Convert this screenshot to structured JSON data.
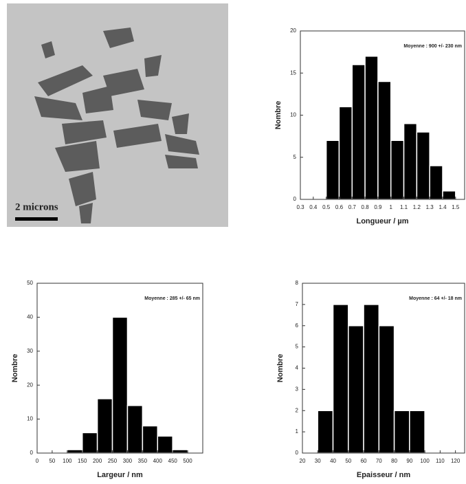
{
  "image": {
    "scale_label": "2 microns"
  },
  "chart_data": [
    {
      "type": "histogram",
      "annotation": "Moyenne : 900 +/- 230 nm",
      "x_label": "Longueur / µm",
      "y_label": "Nombre",
      "bins": [
        0.5,
        0.6,
        0.7,
        0.8,
        0.9,
        1.0,
        1.1,
        1.2,
        1.3,
        1.4,
        1.5
      ],
      "values": [
        7,
        11,
        16,
        17,
        14,
        7,
        9,
        8,
        4,
        1
      ],
      "color": "#000000",
      "xlim": [
        0.3,
        1.57
      ],
      "xticks": [
        0.3,
        0.4,
        0.5,
        0.6,
        0.7,
        0.8,
        0.9,
        1,
        1.1,
        1.2,
        1.3,
        1.4,
        1.5
      ],
      "ylim": [
        0,
        20
      ],
      "yticks": [
        0,
        5,
        10,
        15,
        20
      ]
    },
    {
      "type": "histogram",
      "annotation": "Moyenne : 285 +/- 65 nm",
      "x_label": "Largeur / nm",
      "y_label": "Nombre",
      "bins": [
        100,
        150,
        200,
        250,
        300,
        350,
        400,
        450,
        500
      ],
      "values": [
        1,
        6,
        16,
        40,
        14,
        8,
        5,
        1
      ],
      "color": "#000000",
      "xlim": [
        0,
        550
      ],
      "xticks": [
        0,
        50,
        100,
        150,
        200,
        250,
        300,
        350,
        400,
        450,
        500
      ],
      "ylim": [
        0,
        50
      ],
      "yticks": [
        0,
        10,
        20,
        30,
        40,
        50
      ]
    },
    {
      "type": "histogram",
      "annotation": "Moyenne : 64 +/- 18 nm",
      "x_label": "Epaisseur / nm",
      "y_label": "Nombre",
      "bins": [
        30,
        40,
        50,
        60,
        70,
        80,
        90,
        100
      ],
      "values": [
        2,
        7,
        6,
        7,
        6,
        2,
        2
      ],
      "color": "#000000",
      "xlim": [
        20,
        126
      ],
      "xticks": [
        20,
        30,
        40,
        50,
        60,
        70,
        80,
        90,
        100,
        110,
        120
      ],
      "ylim": [
        0,
        8
      ],
      "yticks": [
        0,
        1,
        2,
        3,
        4,
        5,
        6,
        7,
        8
      ]
    }
  ]
}
